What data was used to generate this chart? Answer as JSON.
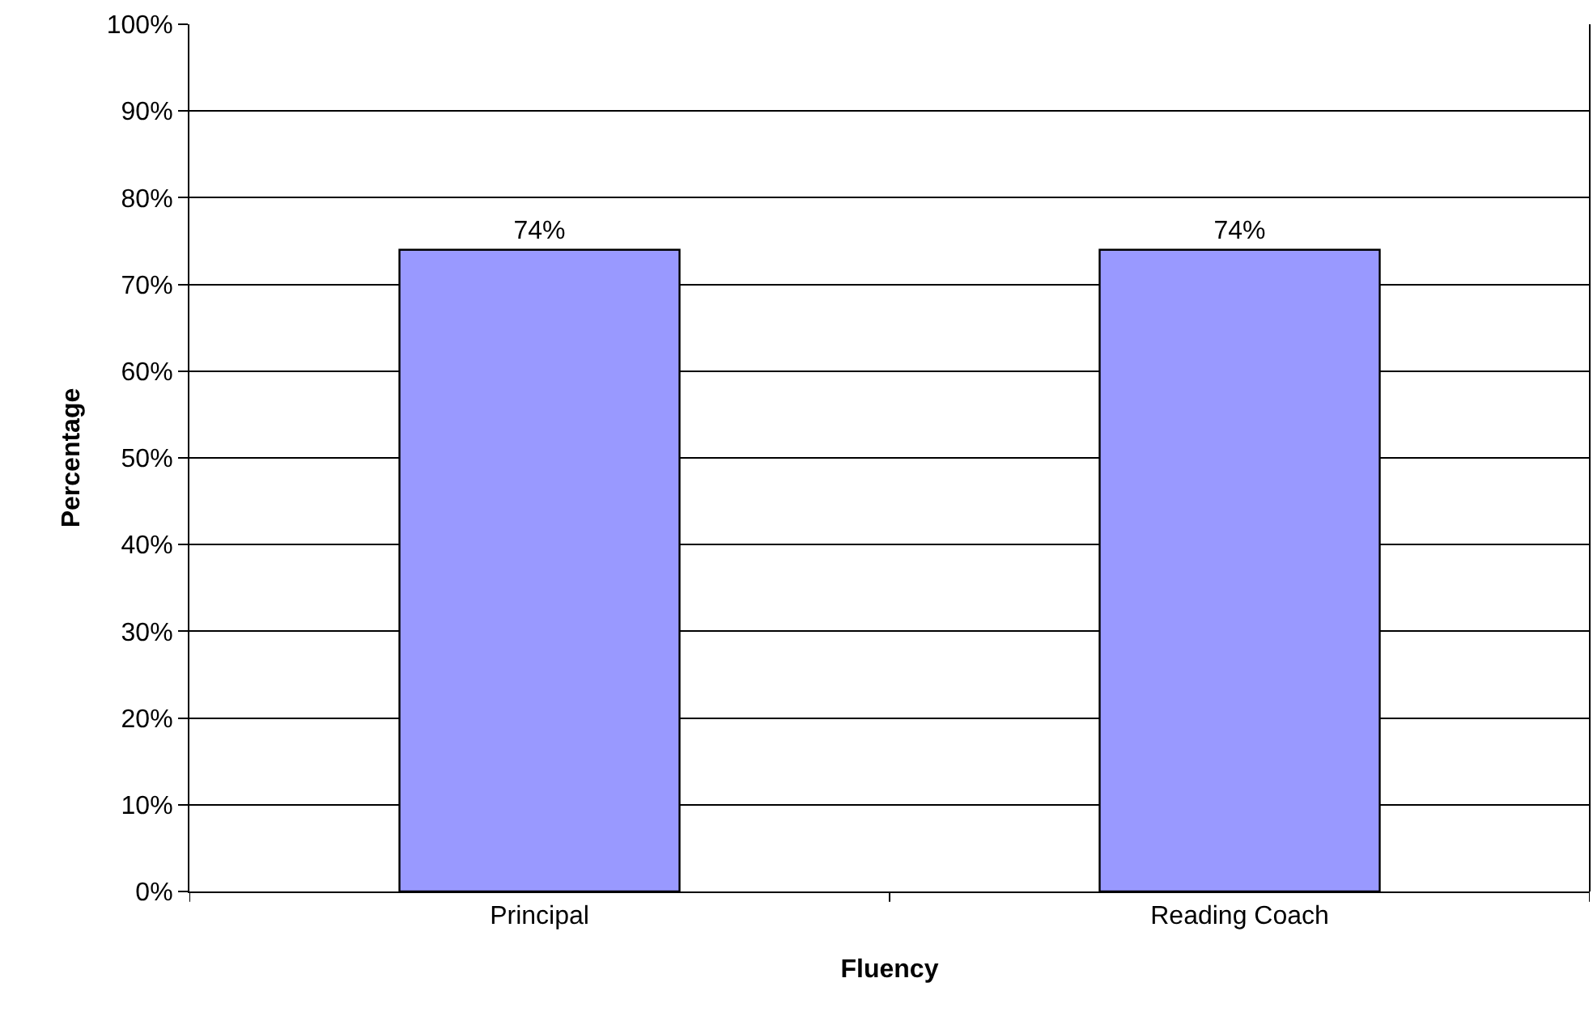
{
  "chart_data": {
    "type": "bar",
    "xlabel": "Fluency",
    "ylabel": "Percentage",
    "categories": [
      "Principal",
      "Reading Coach"
    ],
    "values": [
      74,
      74
    ],
    "color": "#9999ff",
    "value_labels": [
      "74%",
      "74%"
    ],
    "ylim": [
      0,
      100
    ],
    "yticks": [
      {
        "value": 0,
        "label": "0%"
      },
      {
        "value": 10,
        "label": "10%"
      },
      {
        "value": 20,
        "label": "20%"
      },
      {
        "value": 30,
        "label": "30%"
      },
      {
        "value": 40,
        "label": "40%"
      },
      {
        "value": 50,
        "label": "50%"
      },
      {
        "value": 60,
        "label": "60%"
      },
      {
        "value": 70,
        "label": "70%"
      },
      {
        "value": 80,
        "label": "80%"
      },
      {
        "value": 90,
        "label": "90%"
      },
      {
        "value": 100,
        "label": "100%"
      }
    ],
    "grid": "y",
    "legend": false
  }
}
